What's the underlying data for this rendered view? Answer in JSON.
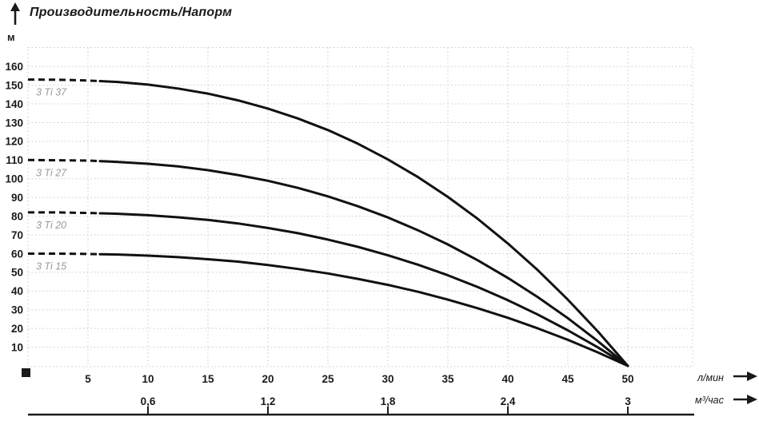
{
  "header": {
    "title": "Производительность/Напорм",
    "y_axis_unit": "м"
  },
  "chart_data": {
    "type": "line",
    "title": "Производительность/Напорм",
    "ylabel": "м",
    "xlabel_primary": "л/мин",
    "xlabel_secondary": "м³/час",
    "ylim": [
      0,
      170
    ],
    "xlim": [
      0,
      55.4
    ],
    "grid": true,
    "legend_position": "inline-labels",
    "y_ticks": [
      10,
      20,
      30,
      40,
      50,
      60,
      70,
      80,
      90,
      100,
      110,
      120,
      130,
      140,
      150,
      160
    ],
    "x_ticks_primary": [
      5,
      10,
      15,
      20,
      25,
      30,
      35,
      40,
      45,
      50
    ],
    "x_ticks_secondary": {
      "labels": [
        "0,6",
        "1,2",
        "1,8",
        "2,4",
        "3"
      ],
      "positions_lmin": [
        10,
        20,
        30,
        40,
        50
      ]
    },
    "dashed_until_lmin": 6,
    "series": [
      {
        "name": "3 Ti 37",
        "max_head_m": 153,
        "max_flow_lmin": 50,
        "points": [
          [
            0,
            153
          ],
          [
            2.5,
            152.9
          ],
          [
            5,
            152.5
          ],
          [
            7.5,
            151.7
          ],
          [
            10,
            150.3
          ],
          [
            12.5,
            148.2
          ],
          [
            15,
            145.5
          ],
          [
            17.5,
            141.9
          ],
          [
            20,
            137.5
          ],
          [
            22.5,
            132.2
          ],
          [
            25,
            126.0
          ],
          [
            27.5,
            118.7
          ],
          [
            30,
            110.3
          ],
          [
            32.5,
            100.9
          ],
          [
            35,
            90.3
          ],
          [
            37.5,
            78.5
          ],
          [
            40,
            65.4
          ],
          [
            42.5,
            51.1
          ],
          [
            45,
            35.4
          ],
          [
            47.5,
            18.4
          ],
          [
            50,
            0
          ]
        ]
      },
      {
        "name": "3 Ti 27",
        "max_head_m": 110,
        "max_flow_lmin": 50,
        "points": [
          [
            0,
            110
          ],
          [
            2.5,
            109.9
          ],
          [
            5,
            109.7
          ],
          [
            7.5,
            109.0
          ],
          [
            10,
            108.0
          ],
          [
            12.5,
            106.6
          ],
          [
            15,
            104.6
          ],
          [
            17.5,
            102.0
          ],
          [
            20,
            98.9
          ],
          [
            22.5,
            95.1
          ],
          [
            25,
            90.6
          ],
          [
            27.5,
            85.3
          ],
          [
            30,
            79.3
          ],
          [
            32.5,
            72.5
          ],
          [
            35,
            64.9
          ],
          [
            37.5,
            56.4
          ],
          [
            40,
            47.0
          ],
          [
            42.5,
            36.7
          ],
          [
            45,
            25.5
          ],
          [
            47.5,
            13.2
          ],
          [
            50,
            0
          ]
        ]
      },
      {
        "name": "3 Ti 20",
        "max_head_m": 82,
        "max_flow_lmin": 50,
        "points": [
          [
            0,
            82
          ],
          [
            2.5,
            82.0
          ],
          [
            5,
            81.7
          ],
          [
            7.5,
            81.3
          ],
          [
            10,
            80.5
          ],
          [
            12.5,
            79.4
          ],
          [
            15,
            78.0
          ],
          [
            17.5,
            76.1
          ],
          [
            20,
            73.7
          ],
          [
            22.5,
            70.9
          ],
          [
            25,
            67.5
          ],
          [
            27.5,
            63.6
          ],
          [
            30,
            59.1
          ],
          [
            32.5,
            54.1
          ],
          [
            35,
            48.4
          ],
          [
            37.5,
            42.1
          ],
          [
            40,
            35.1
          ],
          [
            42.5,
            27.4
          ],
          [
            45,
            19.0
          ],
          [
            47.5,
            9.9
          ],
          [
            50,
            0
          ]
        ]
      },
      {
        "name": "3 Ti 15",
        "max_head_m": 60,
        "max_flow_lmin": 50,
        "points": [
          [
            0,
            60
          ],
          [
            2.5,
            60.0
          ],
          [
            5,
            59.8
          ],
          [
            7.5,
            59.5
          ],
          [
            10,
            58.9
          ],
          [
            12.5,
            58.1
          ],
          [
            15,
            57.0
          ],
          [
            17.5,
            55.7
          ],
          [
            20,
            53.9
          ],
          [
            22.5,
            51.8
          ],
          [
            25,
            49.4
          ],
          [
            27.5,
            46.5
          ],
          [
            30,
            43.3
          ],
          [
            32.5,
            39.6
          ],
          [
            35,
            35.4
          ],
          [
            37.5,
            30.8
          ],
          [
            40,
            25.7
          ],
          [
            42.5,
            20.0
          ],
          [
            45,
            13.9
          ],
          [
            47.5,
            7.2
          ],
          [
            50,
            0
          ]
        ]
      }
    ],
    "colors": {
      "curve": "#111111",
      "grid": "#cbcbcb",
      "series_label": "#9a9a9a",
      "axis_text": "#1a1a1a",
      "background": "#ffffff"
    }
  }
}
